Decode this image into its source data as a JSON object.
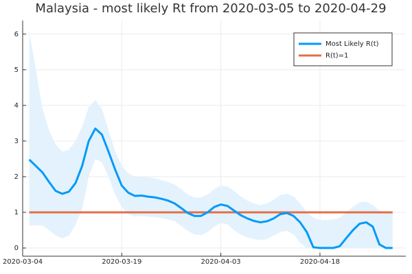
{
  "chart_data": {
    "type": "line",
    "title": "Malaysia - most likely Rt from 2020-03-05 to 2020-04-29",
    "x": [
      "2020-03-05",
      "2020-03-06",
      "2020-03-07",
      "2020-03-08",
      "2020-03-09",
      "2020-03-10",
      "2020-03-11",
      "2020-03-12",
      "2020-03-13",
      "2020-03-14",
      "2020-03-15",
      "2020-03-16",
      "2020-03-17",
      "2020-03-18",
      "2020-03-19",
      "2020-03-20",
      "2020-03-21",
      "2020-03-22",
      "2020-03-23",
      "2020-03-24",
      "2020-03-25",
      "2020-03-26",
      "2020-03-27",
      "2020-03-28",
      "2020-03-29",
      "2020-03-30",
      "2020-03-31",
      "2020-04-01",
      "2020-04-02",
      "2020-04-03",
      "2020-04-04",
      "2020-04-05",
      "2020-04-06",
      "2020-04-07",
      "2020-04-08",
      "2020-04-09",
      "2020-04-10",
      "2020-04-11",
      "2020-04-12",
      "2020-04-13",
      "2020-04-14",
      "2020-04-15",
      "2020-04-16",
      "2020-04-17",
      "2020-04-18",
      "2020-04-19",
      "2020-04-20",
      "2020-04-21",
      "2020-04-22",
      "2020-04-23",
      "2020-04-24",
      "2020-04-25",
      "2020-04-26",
      "2020-04-27",
      "2020-04-28",
      "2020-04-29"
    ],
    "series": [
      {
        "name": "Most Likely R(t)",
        "color": "#009af9",
        "values": [
          2.48,
          2.3,
          2.12,
          1.85,
          1.6,
          1.52,
          1.58,
          1.82,
          2.3,
          3.0,
          3.35,
          3.18,
          2.7,
          2.2,
          1.75,
          1.55,
          1.46,
          1.47,
          1.44,
          1.42,
          1.38,
          1.33,
          1.25,
          1.12,
          0.98,
          0.9,
          0.9,
          1.0,
          1.15,
          1.22,
          1.18,
          1.05,
          0.92,
          0.83,
          0.76,
          0.72,
          0.75,
          0.83,
          0.95,
          0.98,
          0.9,
          0.72,
          0.45,
          0.02,
          0,
          0,
          0,
          0.05,
          0.28,
          0.5,
          0.68,
          0.72,
          0.6,
          0.1,
          0,
          0
        ]
      }
    ],
    "band": {
      "color": "#e3f2fd",
      "lower": [
        0.62,
        0.64,
        0.63,
        0.5,
        0.35,
        0.27,
        0.35,
        0.65,
        1.1,
        2.0,
        2.5,
        2.4,
        2.0,
        1.5,
        1.15,
        0.95,
        0.88,
        0.9,
        0.88,
        0.86,
        0.84,
        0.8,
        0.75,
        0.62,
        0.48,
        0.38,
        0.36,
        0.45,
        0.6,
        0.7,
        0.66,
        0.5,
        0.38,
        0.3,
        0.25,
        0.22,
        0.25,
        0.35,
        0.45,
        0.48,
        0.38,
        0.15,
        0,
        0,
        0,
        0,
        0,
        0,
        0,
        0,
        0,
        0,
        0,
        0,
        0,
        0
      ],
      "upper": [
        6.05,
        5.0,
        3.9,
        3.3,
        2.9,
        2.7,
        2.75,
        3.0,
        3.4,
        3.95,
        4.15,
        3.9,
        3.3,
        2.7,
        2.3,
        2.1,
        2.0,
        2.0,
        1.98,
        1.95,
        1.9,
        1.85,
        1.78,
        1.65,
        1.5,
        1.42,
        1.42,
        1.5,
        1.65,
        1.75,
        1.72,
        1.6,
        1.45,
        1.33,
        1.25,
        1.2,
        1.25,
        1.35,
        1.48,
        1.52,
        1.45,
        1.25,
        1.0,
        0.85,
        0.78,
        0.78,
        0.8,
        0.85,
        1.0,
        1.15,
        1.28,
        1.3,
        1.2,
        1.05,
        1.0,
        0.98
      ]
    },
    "hline": {
      "name": "R(t)=1",
      "value": 1,
      "color": "#e26f46"
    },
    "xlim": [
      "2020-03-04",
      "2020-05-01"
    ],
    "xticks": [
      "2020-03-04",
      "2020-03-19",
      "2020-04-03",
      "2020-04-18"
    ],
    "ylim": [
      -0.23,
      6.38
    ],
    "yticks": [
      0,
      1,
      2,
      3,
      4,
      5,
      6
    ],
    "grid": true,
    "legend": "top-right"
  }
}
